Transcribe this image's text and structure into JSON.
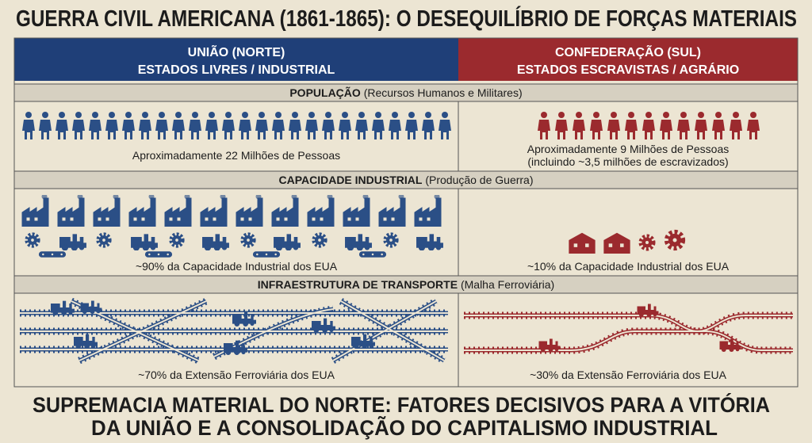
{
  "title": "GUERRA CIVIL AMERICANA (1861-1865): O DESEQUILÍBRIO DE FORÇAS MATERIAIS",
  "columns": {
    "left": {
      "name": "UNIÃO (NORTE)",
      "subtitle": "ESTADOS LIVRES / INDUSTRIAL"
    },
    "right": {
      "name": "CONFEDERAÇÃO (SUL)",
      "subtitle": "ESTADOS ESCRAVISTAS / AGRÁRIO"
    }
  },
  "sections": [
    {
      "title": "POPULAÇÃO",
      "subtitle": "(Recursos Humanos e Militares)",
      "left": [
        "Aproximadamente 22 Milhões de Pessoas"
      ],
      "right": [
        "Aproximadamente 9 Milhões de Pessoas",
        "(incluindo ~3,5 milhões de escravizados)"
      ]
    },
    {
      "title": "CAPACIDADE INDUSTRIAL",
      "subtitle": "(Produção de Guerra)",
      "left": [
        "~90% da Capacidade Industrial dos EUA"
      ],
      "right": [
        "~10% da Capacidade Industrial dos EUA"
      ]
    },
    {
      "title": "INFRAESTRUTURA DE TRANSPORTE",
      "subtitle": "(Malha Ferroviária)",
      "left": [
        "~70% da Extensão Ferroviária dos EUA"
      ],
      "right": [
        "~30% da Extensão Ferroviária dos EUA"
      ]
    }
  ],
  "footer": [
    "SUPREMACIA MATERIAL DO NORTE: FATORES DECISIVOS PARA A VITÓRIA",
    "DA UNIÃO E A CONSOLIDAÇÃO DO CAPITALISMO INDUSTRIAL"
  ]
}
